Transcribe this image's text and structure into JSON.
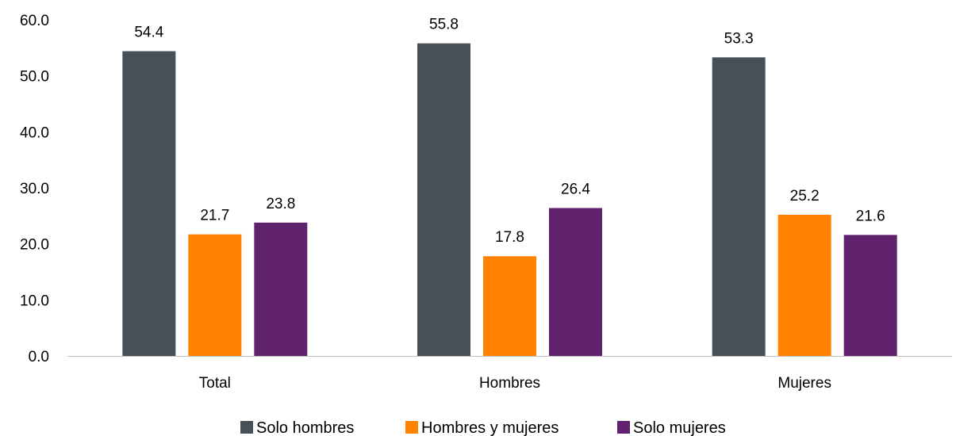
{
  "chart_data": {
    "type": "bar",
    "title": "",
    "xlabel": "",
    "ylabel": "",
    "ylim": [
      0,
      60
    ],
    "yticks": [
      "0.0",
      "10.0",
      "20.0",
      "30.0",
      "40.0",
      "50.0",
      "60.0"
    ],
    "ytick_values": [
      0,
      10,
      20,
      30,
      40,
      50,
      60
    ],
    "grid": false,
    "legend_position": "bottom",
    "categories": [
      "Total",
      "Hombres",
      "Mujeres"
    ],
    "series": [
      {
        "name": "Solo hombres",
        "color": "#475056",
        "values": [
          54.4,
          55.8,
          53.3
        ],
        "labels": [
          "54.4",
          "55.8",
          "53.3"
        ]
      },
      {
        "name": "Hombres y mujeres",
        "color": "#FF8200",
        "values": [
          21.7,
          17.8,
          25.2
        ],
        "labels": [
          "21.7",
          "17.8",
          "25.2"
        ]
      },
      {
        "name": "Solo mujeres",
        "color": "#60226D",
        "values": [
          23.8,
          26.4,
          21.6
        ],
        "labels": [
          "23.8",
          "26.4",
          "21.6"
        ]
      }
    ]
  }
}
